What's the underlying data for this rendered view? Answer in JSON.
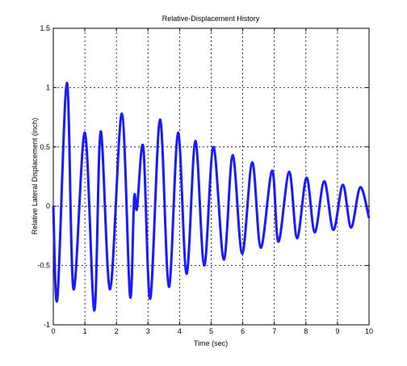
{
  "chart_data": {
    "type": "line",
    "title": "Relative-Displacement History",
    "x_label": "Time (sec)",
    "y_label": "Relative Lateral Displacement (inch)",
    "series": [
      {
        "color": "#1a1aff",
        "x": [
          0,
          0.13,
          0.43,
          0.64,
          1.0,
          1.3,
          1.5,
          1.8,
          2.17,
          2.43,
          2.56,
          2.65,
          2.85,
          3.07,
          3.38,
          3.66,
          3.95,
          4.22,
          4.5,
          4.78,
          5.07,
          5.4,
          5.68,
          5.98,
          6.3,
          6.57,
          6.93,
          7.13,
          7.47,
          7.72,
          8.02,
          8.28,
          8.58,
          8.87,
          9.17,
          9.43,
          9.72,
          10
        ],
        "values": [
          0,
          -0.78,
          1.04,
          -0.7,
          0.62,
          -0.88,
          0.63,
          -0.7,
          0.78,
          -0.76,
          0.07,
          -0.02,
          0.5,
          -0.78,
          0.73,
          -0.68,
          0.62,
          -0.57,
          0.55,
          -0.5,
          0.5,
          -0.45,
          0.43,
          -0.4,
          0.37,
          -0.35,
          0.3,
          -0.3,
          0.29,
          -0.27,
          0.24,
          -0.22,
          0.21,
          -0.2,
          0.18,
          -0.18,
          0.16,
          -0.1
        ]
      }
    ],
    "xlim": [
      0,
      10
    ],
    "xticks": [
      0,
      1,
      2,
      3,
      4,
      5,
      6,
      7,
      8,
      9,
      10
    ],
    "ylim": [
      -1,
      1.5
    ],
    "yticks": [
      -1,
      -0.5,
      0,
      0.5,
      1,
      1.5
    ],
    "grid": true
  }
}
